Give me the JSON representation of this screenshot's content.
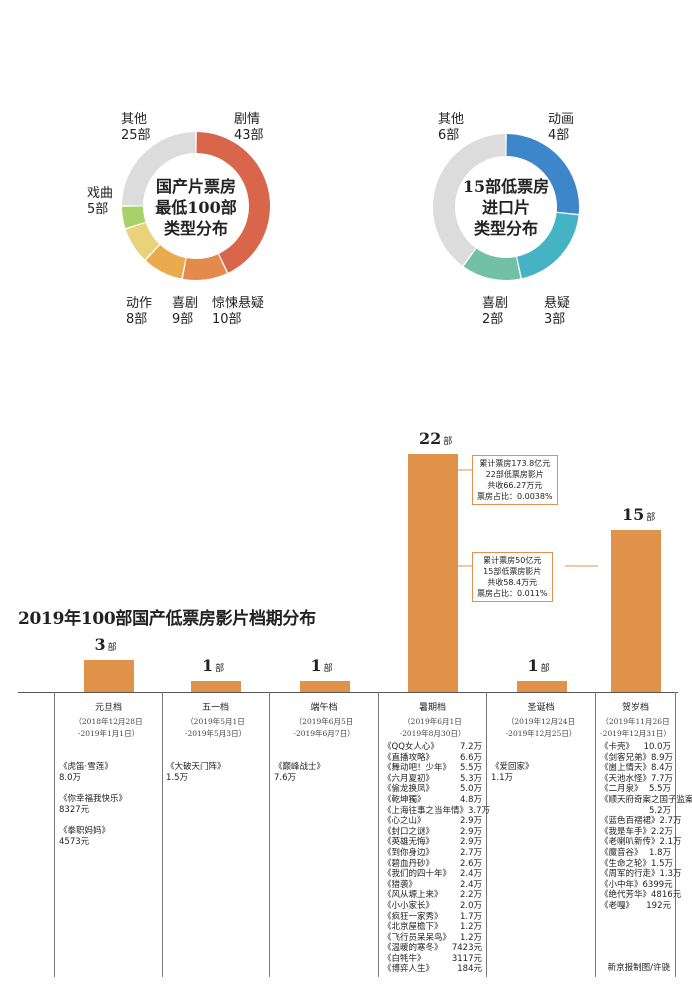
{
  "chart_data": [
    {
      "type": "pie",
      "title": "国产片票房最低100部类型分布",
      "title_lines": [
        "国产片票房",
        "最低100部",
        "类型分布"
      ],
      "slices": [
        {
          "name": "剧情",
          "label": "43部",
          "value": 43,
          "color": "#d9654a"
        },
        {
          "name": "惊悚悬疑",
          "label": "10部",
          "value": 10,
          "color": "#e38a4c"
        },
        {
          "name": "喜剧",
          "label": "9部",
          "value": 9,
          "color": "#eaab4e"
        },
        {
          "name": "动作",
          "label": "8部",
          "value": 8,
          "color": "#e8d27a"
        },
        {
          "name": "戏曲",
          "label": "5部",
          "value": 5,
          "color": "#a8d169"
        },
        {
          "name": "其他",
          "label": "25部",
          "value": 25,
          "color": "#dcdcdc"
        }
      ]
    },
    {
      "type": "pie",
      "title": "15部低票房进口片类型分布",
      "title_lines": [
        "15部低票房",
        "进口片",
        "类型分布"
      ],
      "slices": [
        {
          "name": "动画",
          "label": "4部",
          "value": 4,
          "color": "#3d86c9"
        },
        {
          "name": "悬疑",
          "label": "3部",
          "value": 3,
          "color": "#45b3c4"
        },
        {
          "name": "喜剧",
          "label": "2部",
          "value": 2,
          "color": "#72c0a6"
        },
        {
          "name": "其他",
          "label": "6部",
          "value": 6,
          "color": "#dcdcdc"
        }
      ]
    },
    {
      "type": "bar",
      "title": "2019年100部国产低票房影片档期分布",
      "ylim": [
        0,
        22
      ],
      "categories": [
        "元旦档",
        "五一档",
        "端午档",
        "暑期档",
        "圣诞档",
        "贺岁档"
      ],
      "values": [
        3,
        1,
        1,
        22,
        1,
        15
      ],
      "value_labels": [
        "3",
        "1",
        "1",
        "22",
        "1",
        "15"
      ],
      "unit": "部",
      "bar_color": "#e0924a",
      "periods": [
        {
          "name": "元旦档",
          "date1": "（2018年12月28日",
          "date2": "-2019年1月1日）",
          "films": [
            {
              "t": "《虎笛·雪莲》",
              "v": "8.0万"
            },
            {
              "t": "《你幸福我快乐》",
              "v": "8327元"
            },
            {
              "t": "《拳职妈妈》",
              "v": "4573元"
            }
          ]
        },
        {
          "name": "五一档",
          "date1": "（2019年5月1日",
          "date2": "-2019年5月3日）",
          "films": [
            {
              "t": "《大破天门阵》",
              "v": "1.5万"
            }
          ]
        },
        {
          "name": "端午档",
          "date1": "（2019年6月5日",
          "date2": "-2019年6月7日）",
          "films": [
            {
              "t": "《巅峰战士》",
              "v": "7.6万"
            }
          ]
        },
        {
          "name": "暑期档",
          "date1": "（2019年6月1日",
          "date2": "-2019年8月30日）",
          "films": [
            {
              "t": "《QQ女人心》",
              "v": "7.2万"
            },
            {
              "t": "《直播攻略》",
              "v": "6.6万"
            },
            {
              "t": "《舞动吧！少年》",
              "v": "5.5万"
            },
            {
              "t": "《六月夏初》",
              "v": "5.3万"
            },
            {
              "t": "《偷龙换凤》",
              "v": "5.0万"
            },
            {
              "t": "《乾坤獨》",
              "v": "4.8万"
            },
            {
              "t": "《上海往事之当年情》",
              "v": "3.7万"
            },
            {
              "t": "《心之山》",
              "v": "2.9万"
            },
            {
              "t": "《封口之谜》",
              "v": "2.9万"
            },
            {
              "t": "《英雄无悔》",
              "v": "2.9万"
            },
            {
              "t": "《到你身边》",
              "v": "2.7万"
            },
            {
              "t": "《碧血丹砂》",
              "v": "2.6万"
            },
            {
              "t": "《我们的四十年》",
              "v": "2.4万"
            },
            {
              "t": "《猎袭》",
              "v": "2.4万"
            },
            {
              "t": "《风从塬上来》",
              "v": "2.2万"
            },
            {
              "t": "《小小家长》",
              "v": "2.0万"
            },
            {
              "t": "《疯狂一家秀》",
              "v": "1.7万"
            },
            {
              "t": "《北京屋檐下》",
              "v": "1.2万"
            },
            {
              "t": "《飞行员呆呆鸟》",
              "v": "1.2万"
            },
            {
              "t": "《温暖的寒冬》",
              "v": "7423元"
            },
            {
              "t": "《白牦牛》",
              "v": "3117元"
            },
            {
              "t": "《博弈人生》",
              "v": "184元"
            }
          ]
        },
        {
          "name": "圣诞档",
          "date1": "（2019年12月24日",
          "date2": "-2019年12月25日）",
          "films": [
            {
              "t": "《爱回家》",
              "v": "1.1万"
            }
          ]
        },
        {
          "name": "贺岁档",
          "date1": "（2019年11月26日",
          "date2": "-2019年12月31日）",
          "films": [
            {
              "t": "《卡壳》",
              "v": "10.0万"
            },
            {
              "t": "《剑客兄弟》",
              "v": "8.9万"
            },
            {
              "t": "《崮上情天》",
              "v": "8.4万"
            },
            {
              "t": "《天池水怪》",
              "v": "7.7万"
            },
            {
              "t": "《二月泉》",
              "v": "5.5万"
            },
            {
              "t": "《顺天府奇案之国子监案》",
              "v": ""
            },
            {
              "t": "",
              "v": "5.2万"
            },
            {
              "t": "《蓝色百褶裙》",
              "v": "2.7万"
            },
            {
              "t": "《我是车手》",
              "v": "2.2万"
            },
            {
              "t": "《老喇叭新传》",
              "v": "2.1万"
            },
            {
              "t": "《魔音谷》",
              "v": "1.8万"
            },
            {
              "t": "《生命之轮》",
              "v": "1.5万"
            },
            {
              "t": "《周军的行走》",
              "v": "1.3万"
            },
            {
              "t": "《小中年》",
              "v": "6399元"
            },
            {
              "t": "《绝代芳华》",
              "v": "4816元"
            },
            {
              "t": "《老嘎》",
              "v": "192元"
            }
          ]
        }
      ],
      "annotations": [
        {
          "lines": [
            "累计票房173.8亿元",
            "22部低票房影片",
            "共收66.27万元",
            "票房占比：0.0038%"
          ]
        },
        {
          "lines": [
            "累计票房50亿元",
            "15部低票房影片",
            "共收58.4万元",
            "票房占比：0.011%"
          ]
        }
      ]
    }
  ],
  "credit": "新京报制图/许骁"
}
